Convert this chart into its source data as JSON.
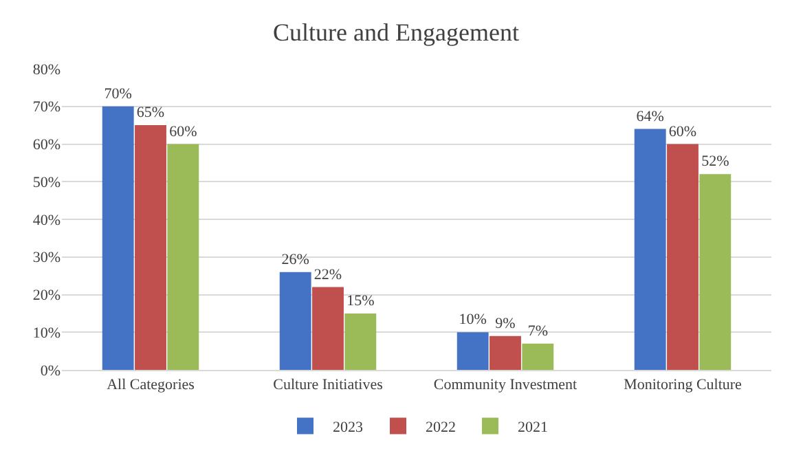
{
  "chart_data": {
    "type": "bar",
    "title": "Culture and Engagement",
    "categories": [
      "All Categories",
      "Culture Initiatives",
      "Community Investment",
      "Monitoring Culture"
    ],
    "series": [
      {
        "name": "2023",
        "color": "#4472c4",
        "values": [
          70,
          26,
          10,
          64
        ],
        "value_labels": [
          "70%",
          "26%",
          "10%",
          "64%"
        ]
      },
      {
        "name": "2022",
        "color": "#c0504d",
        "values": [
          65,
          22,
          9,
          60
        ],
        "value_labels": [
          "65%",
          "22%",
          "9%",
          "60%"
        ]
      },
      {
        "name": "2021",
        "color": "#9bbb59",
        "values": [
          60,
          15,
          7,
          52
        ],
        "value_labels": [
          "60%",
          "15%",
          "7%",
          "52%"
        ]
      }
    ],
    "ylim": [
      0,
      80
    ],
    "yticks": [
      {
        "value": 0,
        "label": "0%"
      },
      {
        "value": 10,
        "label": "10%"
      },
      {
        "value": 20,
        "label": "20%"
      },
      {
        "value": 30,
        "label": "30%"
      },
      {
        "value": 40,
        "label": "40%"
      },
      {
        "value": 50,
        "label": "50%"
      },
      {
        "value": 60,
        "label": "60%"
      },
      {
        "value": 70,
        "label": "70%"
      },
      {
        "value": 80,
        "label": "80%"
      }
    ],
    "grid": "y",
    "legend": "bottom"
  }
}
